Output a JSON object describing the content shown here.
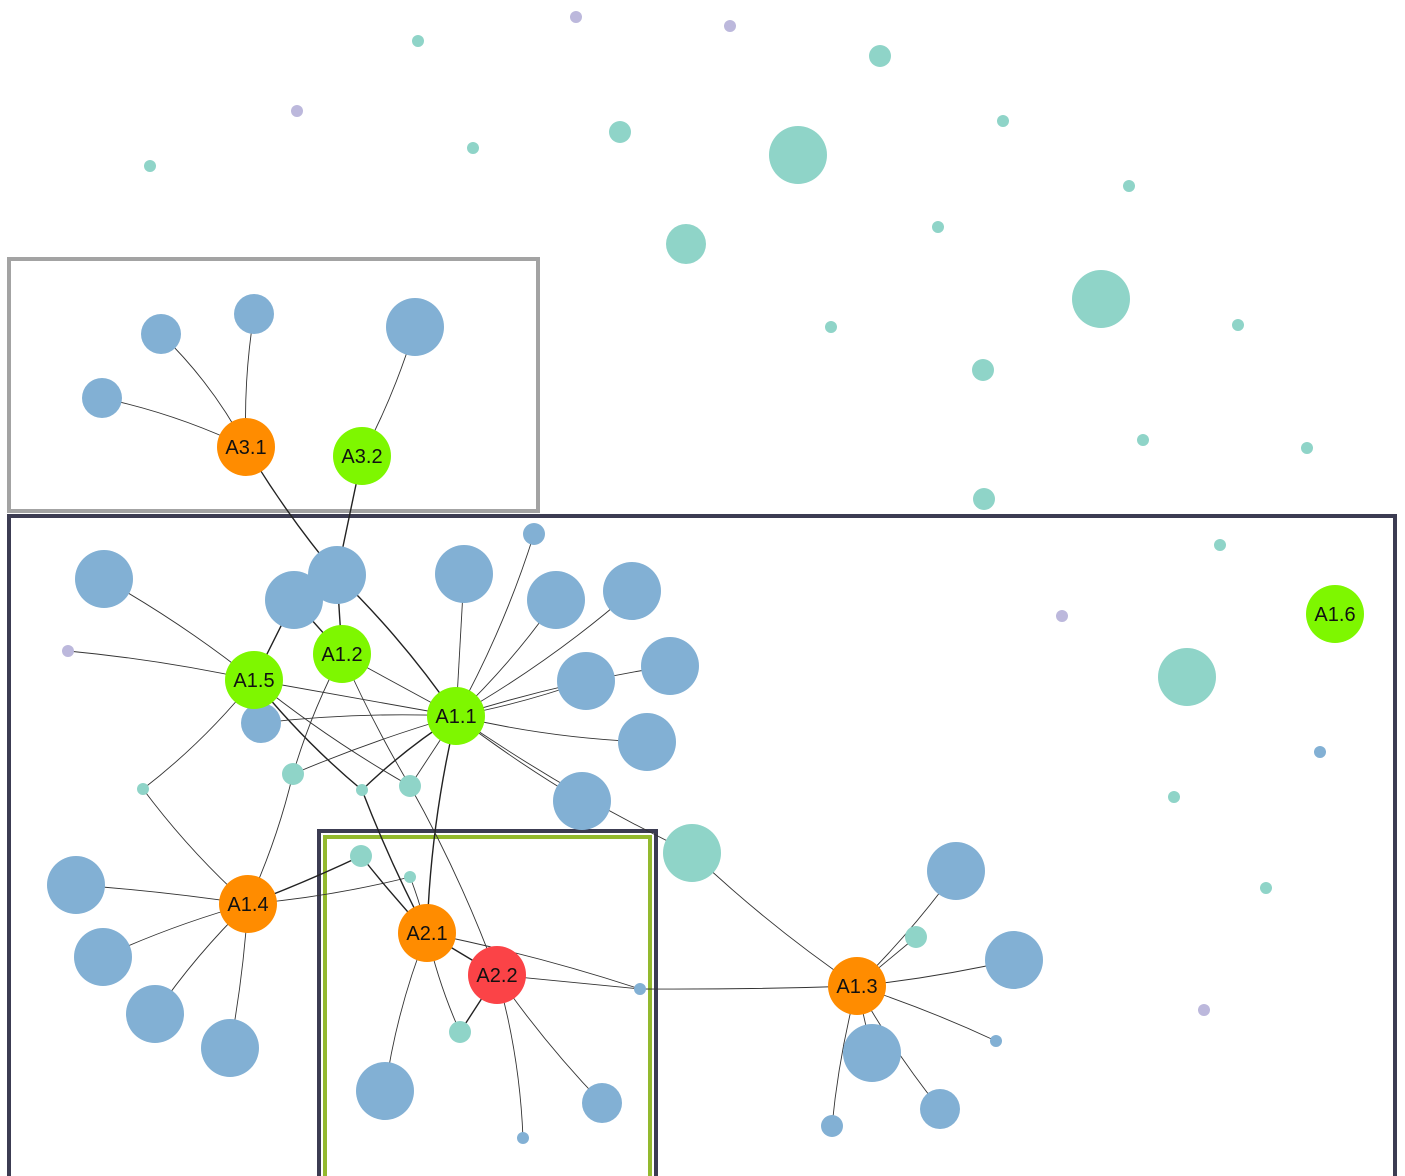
{
  "colors": {
    "background": "#ffffff",
    "node_blue": "#82b0d4",
    "node_teal": "#8fd4c8",
    "node_lavender": "#bcb8dc",
    "node_green_hub": "#7ef700",
    "node_orange_hub": "#ff8c00",
    "node_red_hub": "#fb4347",
    "edge": "#333333",
    "box_gray": "#a3a3a3",
    "box_navy": "#3c3c52",
    "box_green_inner": "#93b92e"
  },
  "hubs": [
    {
      "id": "A3.1",
      "label": "A3.1",
      "kind": "orange"
    },
    {
      "id": "A3.2",
      "label": "A3.2",
      "kind": "green"
    },
    {
      "id": "A1.1",
      "label": "A1.1",
      "kind": "green"
    },
    {
      "id": "A1.2",
      "label": "A1.2",
      "kind": "green"
    },
    {
      "id": "A1.5",
      "label": "A1.5",
      "kind": "green"
    },
    {
      "id": "A1.4",
      "label": "A1.4",
      "kind": "orange"
    },
    {
      "id": "A2.1",
      "label": "A2.1",
      "kind": "orange"
    },
    {
      "id": "A2.2",
      "label": "A2.2",
      "kind": "red"
    },
    {
      "id": "A1.3",
      "label": "A1.3",
      "kind": "orange"
    },
    {
      "id": "A1.6",
      "label": "A1.6",
      "kind": "green"
    }
  ],
  "groups": [
    {
      "id": "group-a3",
      "members": [
        "A3.1",
        "A3.2"
      ]
    },
    {
      "id": "group-a1",
      "members": [
        "A1.1",
        "A1.2",
        "A1.3",
        "A1.4",
        "A1.5",
        "A1.6"
      ]
    },
    {
      "id": "group-a2",
      "members": [
        "A2.1",
        "A2.2"
      ]
    }
  ]
}
